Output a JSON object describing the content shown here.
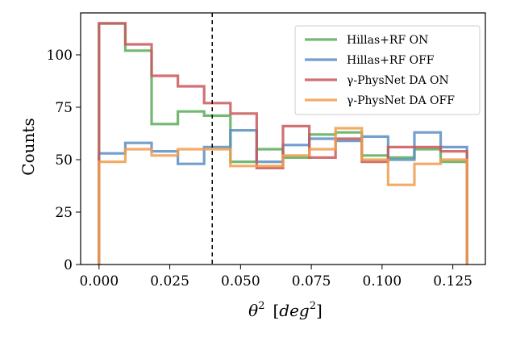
{
  "chart_data": {
    "type": "histogram-step",
    "xlabel_symbol": "θ",
    "xlabel_sup": "2",
    "xlabel_unit_open": "[",
    "xlabel_unit_var": "deg",
    "xlabel_unit_sup": "2",
    "xlabel_unit_close": "]",
    "ylabel": "Counts",
    "xlim": [
      -0.0065,
      0.1365
    ],
    "ylim": [
      0,
      120
    ],
    "xticks": [
      0.0,
      0.025,
      0.05,
      0.075,
      0.1,
      0.125
    ],
    "xtick_labels": [
      "0.000",
      "0.025",
      "0.050",
      "0.075",
      "0.100",
      "0.125"
    ],
    "yticks": [
      0,
      25,
      50,
      75,
      100
    ],
    "ytick_labels": [
      "0",
      "25",
      "50",
      "75",
      "100"
    ],
    "bin_edges": [
      0.0,
      0.00929,
      0.01857,
      0.02786,
      0.03714,
      0.04643,
      0.05571,
      0.065,
      0.07429,
      0.08357,
      0.09286,
      0.10214,
      0.11143,
      0.12071,
      0.13
    ],
    "cut_line": 0.04,
    "legend_position": "upper right",
    "series": [
      {
        "name": "Hillas+RF ON",
        "color": "#5aac5a",
        "values": [
          115,
          102,
          67,
          73,
          71,
          49,
          55,
          51,
          62,
          63,
          52,
          51,
          55,
          49
        ]
      },
      {
        "name": "Hillas+RF OFF",
        "color": "#5b8ec3",
        "values": [
          53,
          58,
          54,
          48,
          56,
          64,
          49,
          57,
          60,
          59,
          61,
          50,
          63,
          56
        ]
      },
      {
        "name": "γ-PhysNet DA ON",
        "color": "#c8595c",
        "values": [
          115,
          105,
          90,
          85,
          77,
          72,
          46,
          66,
          51,
          60,
          49,
          56,
          56,
          54
        ]
      },
      {
        "name": "γ-PhysNet DA OFF",
        "color": "#ef9d4c",
        "values": [
          49,
          55,
          52,
          55,
          55,
          47,
          47,
          52,
          55,
          65,
          50,
          38,
          48,
          50
        ]
      }
    ]
  }
}
